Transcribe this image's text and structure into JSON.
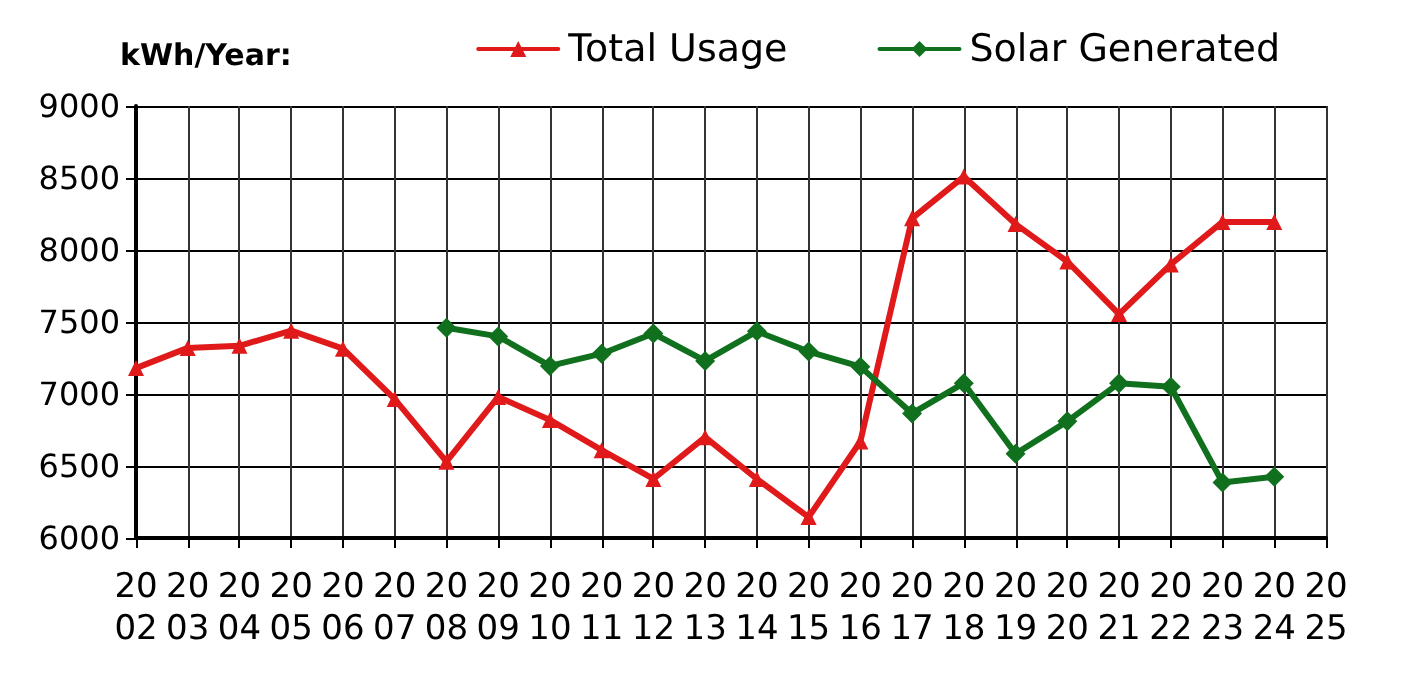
{
  "chart_data": {
    "type": "line",
    "ylabel": "kWh/Year:",
    "categories": [
      "2002",
      "2003",
      "2004",
      "2005",
      "2006",
      "2007",
      "2008",
      "2009",
      "2010",
      "2011",
      "2012",
      "2013",
      "2014",
      "2015",
      "2016",
      "2017",
      "2018",
      "2019",
      "2020",
      "2021",
      "2022",
      "2023",
      "2024",
      "2025"
    ],
    "series": [
      {
        "name": "Total Usage",
        "color": "#e01a1a",
        "marker": "triangle",
        "values": [
          7180,
          7320,
          7335,
          7440,
          7315,
          6965,
          6530,
          6980,
          6820,
          6610,
          6410,
          6700,
          6410,
          6145,
          6670,
          8220,
          8510,
          8180,
          7920,
          7555,
          7900,
          8195,
          8195,
          null
        ]
      },
      {
        "name": "Solar Generated",
        "color": "#10701e",
        "marker": "diamond",
        "values": [
          null,
          null,
          null,
          null,
          null,
          null,
          7460,
          7400,
          7195,
          7280,
          7420,
          7230,
          7435,
          7295,
          7190,
          6865,
          7075,
          6585,
          6810,
          7075,
          7050,
          6385,
          6425,
          null
        ]
      }
    ],
    "ylim": [
      6000,
      9000
    ],
    "yticks": [
      6000,
      6500,
      7000,
      7500,
      8000,
      8500,
      9000
    ],
    "grid": true,
    "legend": "top right",
    "line_style": "solid"
  }
}
